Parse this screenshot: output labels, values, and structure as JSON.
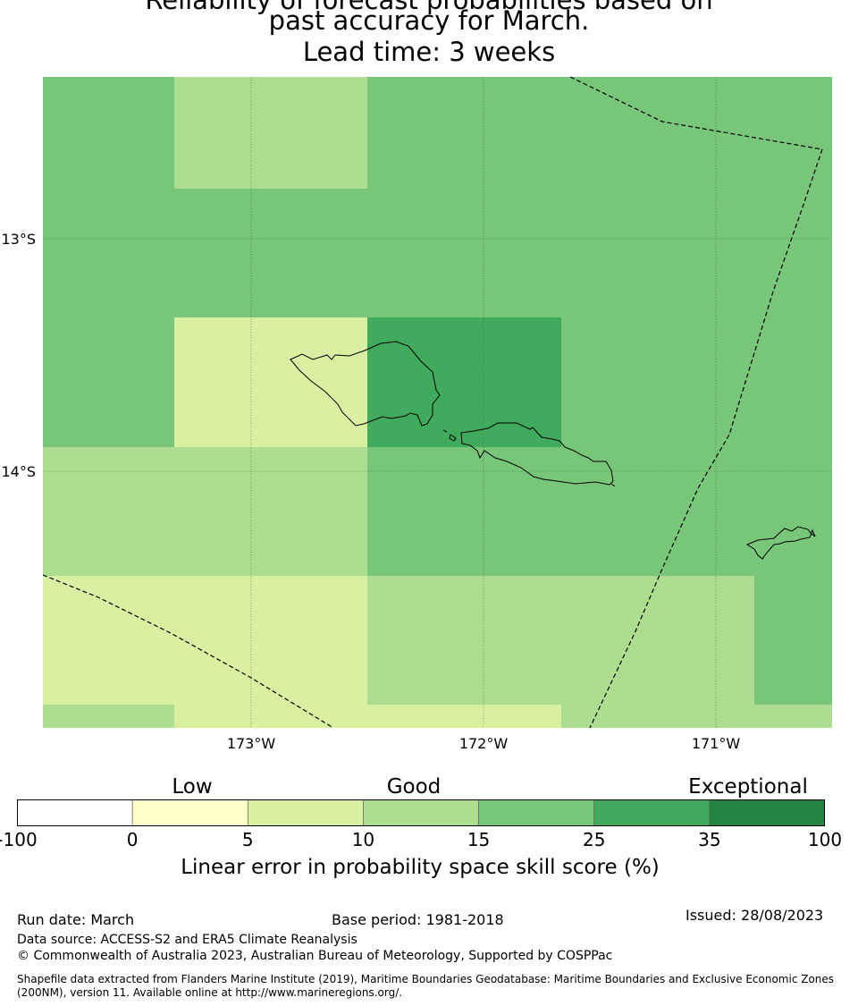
{
  "title": {
    "line1": "Reliability of forecast probabilities based on",
    "line2": "past accuracy for March.",
    "line3": "Lead time: 3 weeks"
  },
  "map": {
    "lat_labels": [
      "13°S",
      "14°S"
    ],
    "lon_labels": [
      "173°W",
      "172°W",
      "171°W"
    ],
    "skill_grid_percent": [
      [
        20,
        12,
        12,
        20,
        20,
        20,
        20,
        20
      ],
      [
        20,
        20,
        20,
        20,
        20,
        20,
        20,
        20
      ],
      [
        20,
        7,
        7,
        30,
        30,
        20,
        20,
        20
      ],
      [
        12,
        12,
        12,
        20,
        20,
        20,
        20,
        20
      ],
      [
        7,
        7,
        7,
        12,
        12,
        12,
        12,
        20
      ],
      [
        12,
        7,
        7,
        7,
        7,
        12,
        12,
        12
      ]
    ],
    "colors": {
      "0": "#ffffcc",
      "5": "#d9f0a3",
      "10": "#addd8e",
      "15": "#78c679",
      "25": "#41ab5d",
      "35": "#238443"
    }
  },
  "colorbar": {
    "categories": [
      "Low",
      "Good",
      "Exceptional"
    ],
    "ticks": [
      "-100",
      "0",
      "5",
      "10",
      "15",
      "25",
      "35",
      "100"
    ],
    "colors": [
      "#ffffff",
      "#ffffcc",
      "#d9f0a3",
      "#addd8e",
      "#78c679",
      "#41ab5d",
      "#238443"
    ],
    "label": "Linear error in probability space skill score (%)"
  },
  "footer": {
    "run_date": "Run date: March",
    "base_period": "Base period: 1981-2018",
    "issued": "Issued: 28/08/2023",
    "data_source": "Data source: ACCESS-S2 and ERA5 Climate Reanalysis",
    "copyright": "© Commonwealth of Australia 2023, Australian Bureau of Meteorology, Supported by COSPPac",
    "shapefile": "Shapefile data extracted from Flanders Marine Institute (2019), Maritime Boundaries Geodatabase: Maritime Boundaries and Exclusive Economic Zones (200NM), version 11. Available online at http://www.marineregions.org/."
  }
}
